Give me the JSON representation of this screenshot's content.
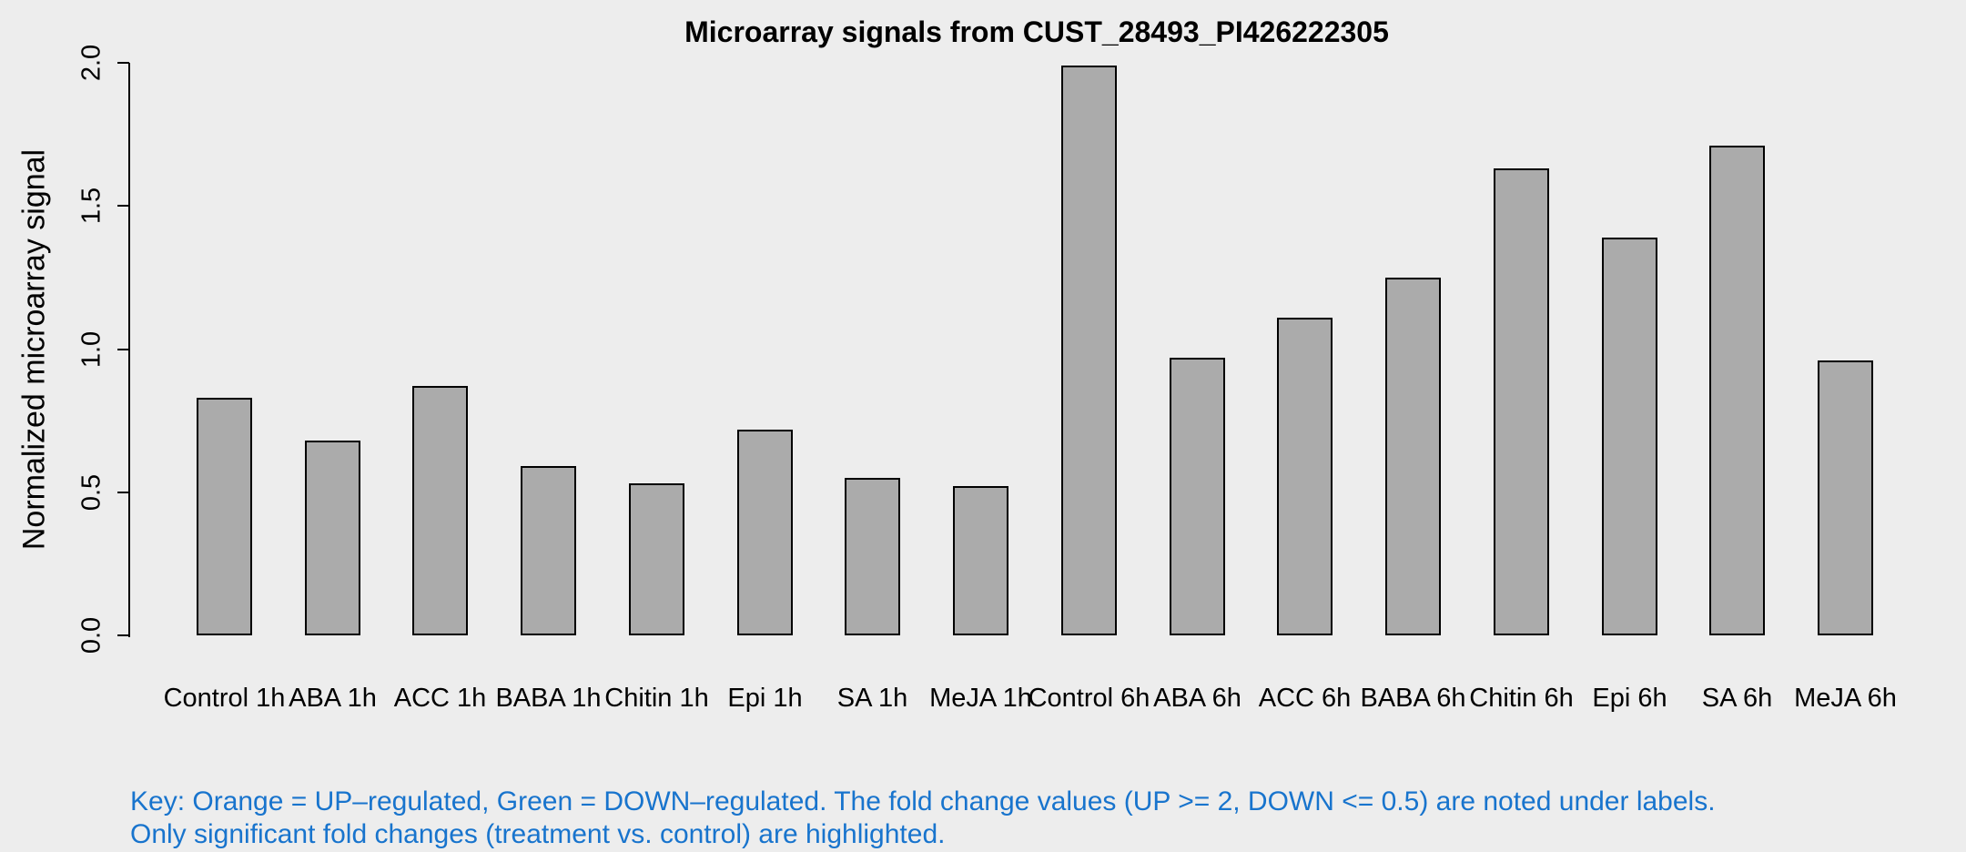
{
  "chart_data": {
    "type": "bar",
    "title": "Microarray signals from CUST_28493_PI426222305",
    "xlabel": "",
    "ylabel": "Normalized microarray signal",
    "categories": [
      "Control 1h",
      "ABA 1h",
      "ACC 1h",
      "BABA 1h",
      "Chitin 1h",
      "Epi 1h",
      "SA 1h",
      "MeJA 1h",
      "Control 6h",
      "ABA 6h",
      "ACC 6h",
      "BABA 6h",
      "Chitin 6h",
      "Epi 6h",
      "SA 6h",
      "MeJA 6h"
    ],
    "values": [
      0.83,
      0.68,
      0.87,
      0.59,
      0.53,
      0.72,
      0.55,
      0.52,
      1.99,
      0.97,
      1.11,
      1.25,
      1.63,
      1.39,
      1.71,
      0.96
    ],
    "yticks": [
      "0.0",
      "0.5",
      "1.0",
      "1.5",
      "2.0"
    ],
    "ylim": [
      0,
      2.0
    ],
    "grid": false,
    "legend_position": "none",
    "bar_fill": "#ABABAB",
    "bar_border": "#000000"
  },
  "notes": {
    "line1": "Key: Orange = UP–regulated, Green = DOWN–regulated. The fold change values (UP >= 2, DOWN <= 0.5) are noted under labels.",
    "line2": "Only significant fold changes (treatment vs. control) are highlighted.",
    "color": "#1874CD"
  },
  "colors": {
    "background": "#EDEDED",
    "axis": "#000000",
    "text": "#000000"
  }
}
